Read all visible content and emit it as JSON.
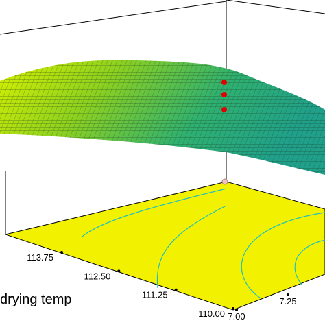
{
  "chart_data": {
    "type": "surface3d",
    "xlabel": "drying temp",
    "xticks": [
      {
        "value": 113.75,
        "label": "113.75"
      },
      {
        "value": 112.5,
        "label": "112.50"
      },
      {
        "value": 111.25,
        "label": "111.25"
      },
      {
        "value": 110,
        "label": "110.00"
      }
    ],
    "yticks": [
      {
        "value": 7,
        "label": "7.00"
      },
      {
        "value": 7.25,
        "label": "7.25"
      }
    ]
  }
}
